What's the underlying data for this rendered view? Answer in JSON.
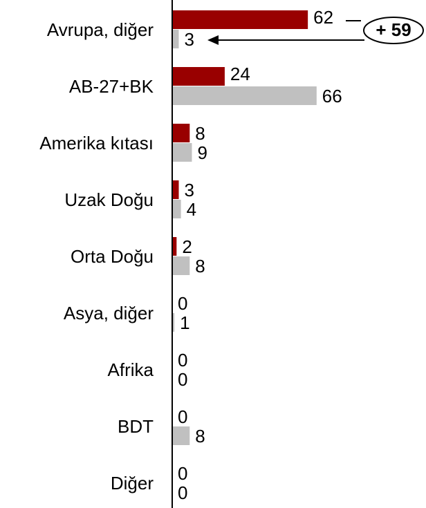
{
  "chart_data": {
    "type": "bar",
    "orientation": "horizontal",
    "categories": [
      "Avrupa, diğer",
      "AB-27+BK",
      "Amerika kıtası",
      "Uzak Doğu",
      "Orta Doğu",
      "Asya, diğer",
      "Afrika",
      "BDT",
      "Diğer"
    ],
    "series": [
      {
        "color": "#990000",
        "values": [
          62,
          24,
          8,
          3,
          2,
          0,
          0,
          0,
          0
        ]
      },
      {
        "color": "#c0c0c0",
        "values": [
          3,
          66,
          9,
          4,
          8,
          1,
          0,
          8,
          0
        ]
      }
    ],
    "xlim": [
      0,
      116
    ],
    "annotation": "+ 59"
  }
}
